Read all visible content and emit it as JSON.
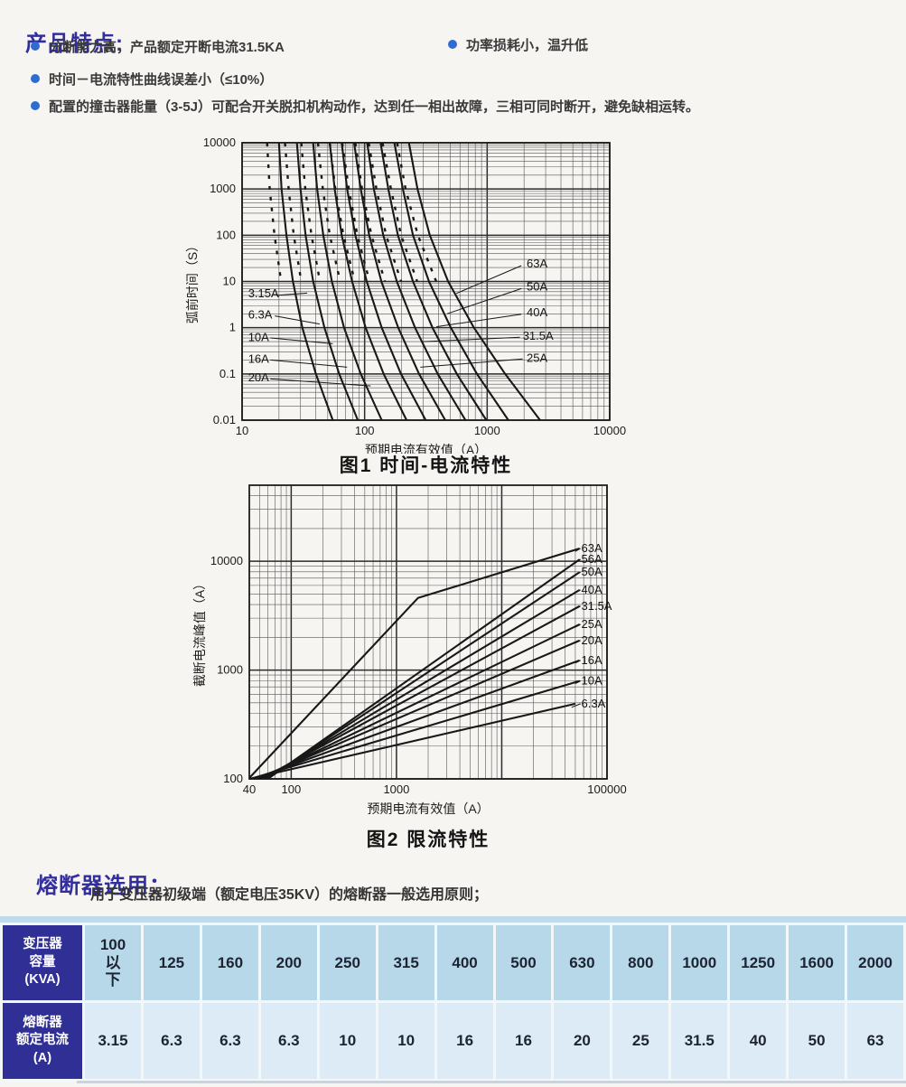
{
  "colors": {
    "heading_blue": "#322e9d",
    "bullet_blue": "#2e6cd1",
    "table_header_bg": "#2f2f96",
    "row1_bg": "#b7d8e9",
    "row2_bg": "#dcebf5"
  },
  "features": {
    "heading": "产品特点:",
    "items": [
      "分断能力高，产品额定开断电流31.5KA",
      "功率损耗小，温升低",
      "时间－电流特性曲线误差小（≤10%）",
      "配置的撞击器能量（3-5J）可配合开关脱扣机构动作，达到任一相出故障，三相可同时断开，避免缺相运转。"
    ]
  },
  "chart_data": [
    {
      "type": "line",
      "title": "图1 时间-电流特性",
      "xlabel": "预期电流有效值（A）",
      "ylabel": "弧前时间（S）",
      "xscale": "log",
      "yscale": "log",
      "xlim": [
        10,
        10000
      ],
      "ylim": [
        0.01,
        10000
      ],
      "xticks": [
        10,
        100,
        1000,
        10000
      ],
      "yticks": [
        10000,
        1000,
        100,
        10,
        1,
        0.1,
        0.01
      ],
      "grid": "log-major-minor",
      "times": [
        10000,
        1000,
        100,
        10,
        1,
        0.1,
        0.01
      ],
      "series": [
        {
          "name": "3.15A",
          "currents": [
            20,
            21,
            23,
            26,
            31,
            40,
            55
          ]
        },
        {
          "name": "6.3A",
          "currents": [
            28,
            30,
            33,
            38,
            47,
            62,
            88
          ]
        },
        {
          "name": "10A",
          "currents": [
            38,
            41,
            46,
            54,
            68,
            93,
            138
          ]
        },
        {
          "name": "16A",
          "currents": [
            52,
            57,
            65,
            79,
            102,
            143,
            220
          ]
        },
        {
          "name": "20A",
          "currents": [
            65,
            72,
            84,
            104,
            138,
            198,
            315
          ]
        },
        {
          "name": "25A",
          "currents": [
            82,
            93,
            109,
            137,
            188,
            278,
            455
          ]
        },
        {
          "name": "31.5A",
          "currents": [
            105,
            119,
            142,
            183,
            258,
            395,
            665
          ]
        },
        {
          "name": "40A",
          "currents": [
            135,
            156,
            187,
            248,
            358,
            565,
            985
          ]
        },
        {
          "name": "50A",
          "currents": [
            175,
            205,
            248,
            335,
            505,
            825,
            1490
          ]
        },
        {
          "name": "63A",
          "currents": [
            230,
            270,
            340,
            480,
            780,
            1400,
            2700
          ]
        }
      ],
      "minmelt_factor": 0.8,
      "minmelt_trange": [
        10,
        10000
      ],
      "labels": [
        {
          "text": "3.15A",
          "x": 11.2,
          "y": 5.5,
          "leader": [
            [
              19,
              5.0
            ],
            [
              34,
              5.6
            ]
          ]
        },
        {
          "text": "6.3A",
          "x": 11.2,
          "y": 1.9,
          "leader": [
            [
              18.5,
              1.8
            ],
            [
              43,
              1.2
            ]
          ]
        },
        {
          "text": "10A",
          "x": 11.2,
          "y": 0.62,
          "leader": [
            [
              17,
              0.6
            ],
            [
              55,
              0.45
            ]
          ]
        },
        {
          "text": "16A",
          "x": 11.2,
          "y": 0.21,
          "leader": [
            [
              17,
              0.2
            ],
            [
              72,
              0.14
            ]
          ]
        },
        {
          "text": "20A",
          "x": 11.2,
          "y": 0.082,
          "leader": [
            [
              17,
              0.078
            ],
            [
              112,
              0.055
            ]
          ]
        },
        {
          "text": "63A",
          "x": 2100,
          "y": 24,
          "leader": [
            [
              1900,
              22
            ],
            [
              560,
              5.5
            ]
          ]
        },
        {
          "text": "50A",
          "x": 2100,
          "y": 7.6,
          "leader": [
            [
              1900,
              7.0
            ],
            [
              470,
              2.0
            ]
          ]
        },
        {
          "text": "40A",
          "x": 2100,
          "y": 2.1,
          "leader": [
            [
              1900,
              1.95
            ],
            [
              385,
              1.05
            ]
          ]
        },
        {
          "text": "31.5A",
          "x": 1950,
          "y": 0.66,
          "leader": [
            [
              1850,
              0.62
            ],
            [
              300,
              0.5
            ]
          ]
        },
        {
          "text": "25A",
          "x": 2100,
          "y": 0.22,
          "leader": [
            [
              1950,
              0.21
            ],
            [
              285,
              0.14
            ]
          ]
        }
      ]
    },
    {
      "type": "line",
      "title": "图2 限流特性",
      "xlabel": "预期电流有效值（A）",
      "ylabel": "截断电流峰值（A）",
      "xscale": "log",
      "yscale": "log",
      "xlim": [
        40,
        100000
      ],
      "ylim": [
        100,
        50000
      ],
      "xticks": [
        40,
        100,
        1000,
        100000
      ],
      "yticks": [
        100,
        1000,
        10000
      ],
      "grid": "log-major-minor",
      "series": [
        {
          "name": "63A",
          "points": [
            [
              40,
              102
            ],
            [
              1600,
              4600
            ],
            [
              55000,
              13100
            ]
          ]
        },
        {
          "name": "56A",
          "points": [
            [
              60,
              100
            ],
            [
              55000,
              10400
            ]
          ]
        },
        {
          "name": "50A",
          "points": [
            [
              58,
              100
            ],
            [
              55000,
              7950
            ]
          ]
        },
        {
          "name": "40A",
          "points": [
            [
              55,
              100
            ],
            [
              55000,
              5450
            ]
          ]
        },
        {
          "name": "31.5A",
          "points": [
            [
              52,
              100
            ],
            [
              55000,
              3870
            ]
          ]
        },
        {
          "name": "25A",
          "points": [
            [
              50,
              100
            ],
            [
              55000,
              2630
            ]
          ]
        },
        {
          "name": "20A",
          "points": [
            [
              47,
              100
            ],
            [
              55000,
              1870
            ]
          ]
        },
        {
          "name": "16A",
          "points": [
            [
              44,
              100
            ],
            [
              55000,
              1230
            ]
          ]
        },
        {
          "name": "10A",
          "points": [
            [
              41,
              100
            ],
            [
              55000,
              795
            ]
          ]
        },
        {
          "name": "6.3A",
          "points": [
            [
              40,
              100
            ],
            [
              50000,
              490
            ]
          ]
        }
      ],
      "labels": [
        {
          "text": "63A",
          "x": 57000,
          "y": 13100,
          "leader": [
            [
              50000,
              12300
            ],
            [
              56000,
              13100
            ]
          ]
        },
        {
          "text": "56A",
          "x": 57000,
          "y": 10400,
          "leader": [
            [
              50000,
              9800
            ],
            [
              56000,
              10400
            ]
          ]
        },
        {
          "text": "50A",
          "x": 57000,
          "y": 7950,
          "leader": [
            [
              50000,
              7500
            ],
            [
              56000,
              7950
            ]
          ]
        },
        {
          "text": "40A",
          "x": 57000,
          "y": 5450,
          "leader": [
            [
              50000,
              5150
            ],
            [
              56000,
              5450
            ]
          ]
        },
        {
          "text": "31.5A",
          "x": 57000,
          "y": 3870,
          "leader": [
            [
              50000,
              3650
            ],
            [
              56000,
              3870
            ]
          ]
        },
        {
          "text": "25A",
          "x": 57000,
          "y": 2630,
          "leader": [
            [
              50000,
              2480
            ],
            [
              56000,
              2630
            ]
          ]
        },
        {
          "text": "20A",
          "x": 57000,
          "y": 1870,
          "leader": [
            [
              50000,
              1770
            ],
            [
              56000,
              1870
            ]
          ]
        },
        {
          "text": "16A",
          "x": 57000,
          "y": 1230,
          "leader": [
            [
              50000,
              1160
            ],
            [
              56000,
              1230
            ]
          ]
        },
        {
          "text": "10A",
          "x": 57000,
          "y": 795,
          "leader": [
            [
              50000,
              750
            ],
            [
              56000,
              795
            ]
          ]
        },
        {
          "text": "6.3A",
          "x": 57000,
          "y": 490,
          "leader": [
            [
              46000,
              455
            ],
            [
              56000,
              490
            ]
          ]
        }
      ]
    }
  ],
  "selection": {
    "heading": "熔断器选用：",
    "note": "用于变压器初级端（额定电压35KV）的熔断器一般选用原则；",
    "table": {
      "row1_header": "变压器\n容量\n(KVA)",
      "row2_header": "熔断器\n额定电流\n(A)",
      "capacities": [
        "100\n以\n下",
        "125",
        "160",
        "200",
        "250",
        "315",
        "400",
        "500",
        "630",
        "800",
        "1000",
        "1250",
        "1600",
        "2000"
      ],
      "currents": [
        "3.15",
        "6.3",
        "6.3",
        "6.3",
        "10",
        "10",
        "16",
        "16",
        "20",
        "25",
        "31.5",
        "40",
        "50",
        "63"
      ]
    }
  }
}
